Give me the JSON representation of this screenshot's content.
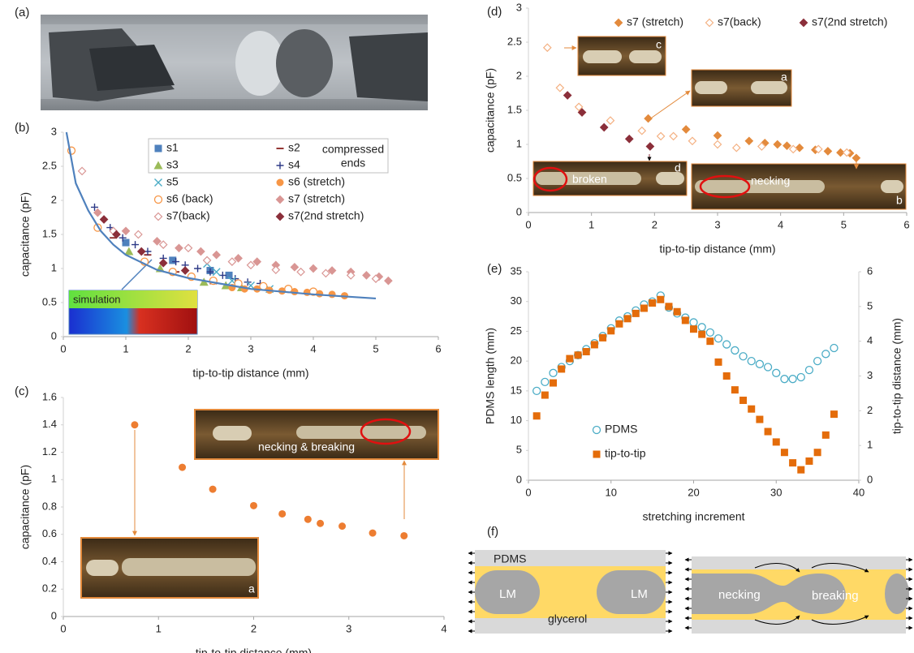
{
  "photo": {
    "label": "(a)"
  },
  "chart_data": [
    {
      "type": "scatter",
      "panel_label": "(b)",
      "x_label": "tip-to-tip distance (mm)",
      "y_label": "capacitance (pF)",
      "xlim": [
        0,
        6
      ],
      "ylim": [
        0,
        3
      ],
      "xticks": [
        0,
        1,
        2,
        3,
        4,
        5,
        6
      ],
      "yticks": [
        0,
        0.5,
        1,
        1.5,
        2,
        2.5,
        3
      ],
      "annotations": [
        "compressed",
        "ends"
      ],
      "series": [
        {
          "name": "s1",
          "color": "#4F81BD",
          "marker": "square",
          "x": [
            1.0,
            1.75,
            2.35,
            2.65
          ],
          "values": [
            1.38,
            1.12,
            0.97,
            0.9
          ]
        },
        {
          "name": "s2",
          "color": "#953735",
          "marker": "dash",
          "x": [
            0.8,
            1.35,
            1.8,
            2.4
          ],
          "values": [
            1.45,
            1.2,
            0.95,
            0.78
          ]
        },
        {
          "name": "s3",
          "color": "#9BBB59",
          "marker": "triangle",
          "x": [
            1.05,
            1.55,
            2.25,
            2.6,
            2.85
          ],
          "values": [
            1.25,
            1.0,
            0.8,
            0.75,
            0.72
          ]
        },
        {
          "name": "s4",
          "color": "#2E3A87",
          "marker": "plus",
          "x": [
            0.5,
            0.75,
            0.95,
            1.15,
            1.35,
            1.6,
            1.8,
            1.95,
            2.15,
            2.35,
            2.55,
            2.75,
            2.95,
            3.15
          ],
          "values": [
            1.9,
            1.6,
            1.45,
            1.35,
            1.25,
            1.15,
            1.1,
            1.05,
            1.0,
            0.95,
            0.9,
            0.85,
            0.8,
            0.78
          ]
        },
        {
          "name": "s5",
          "color": "#4BACC6",
          "marker": "x",
          "x": [
            2.3,
            2.45,
            2.7,
            3.0,
            3.3
          ],
          "values": [
            1.07,
            0.95,
            0.82,
            0.75,
            0.7
          ]
        },
        {
          "name": "s6 (stretch)",
          "color": "#F79646",
          "marker": "circle",
          "x": [
            2.7,
            2.9,
            3.1,
            3.3,
            3.5,
            3.7,
            3.9,
            4.1,
            4.3,
            4.5
          ],
          "values": [
            0.72,
            0.7,
            0.7,
            0.68,
            0.67,
            0.66,
            0.65,
            0.63,
            0.62,
            0.6
          ]
        },
        {
          "name": "s6 (back)",
          "color": "#F79646",
          "marker": "circle-open",
          "x": [
            0.13,
            0.55,
            1.3,
            1.75,
            2.05,
            2.4,
            2.8,
            3.2,
            3.6,
            4.0
          ],
          "values": [
            2.73,
            1.6,
            1.1,
            0.95,
            0.88,
            0.82,
            0.78,
            0.74,
            0.7,
            0.66
          ]
        },
        {
          "name": "s7 (stretch)",
          "color": "#D99694",
          "marker": "diamond",
          "x": [
            0.55,
            1.0,
            1.5,
            1.85,
            2.2,
            2.45,
            2.8,
            3.1,
            3.4,
            3.7,
            4.0,
            4.3,
            4.6,
            4.85,
            5.05,
            5.2
          ],
          "values": [
            1.82,
            1.55,
            1.4,
            1.3,
            1.25,
            1.2,
            1.15,
            1.1,
            1.05,
            1.02,
            1.0,
            0.97,
            0.95,
            0.9,
            0.88,
            0.82
          ]
        },
        {
          "name": "s7(back)",
          "color": "#D99694",
          "marker": "diamond-open",
          "x": [
            0.3,
            0.8,
            1.2,
            1.6,
            2.0,
            2.3,
            2.7,
            3.0,
            3.4,
            3.8,
            4.2,
            4.6,
            5.0
          ],
          "values": [
            2.43,
            1.55,
            1.5,
            1.35,
            1.3,
            1.12,
            1.1,
            1.05,
            0.98,
            0.95,
            0.93,
            0.9,
            0.85
          ]
        },
        {
          "name": "s7(2nd stretch)",
          "color": "#8B2F3A",
          "marker": "diamond",
          "x": [
            0.65,
            0.85,
            1.25,
            1.6,
            1.95
          ],
          "values": [
            1.72,
            1.5,
            1.25,
            1.08,
            0.97
          ]
        },
        {
          "name": "simulation",
          "color": "#4F81BD",
          "marker": "line",
          "x": [
            0.05,
            0.2,
            0.4,
            0.6,
            0.8,
            1.0,
            1.5,
            2.0,
            2.5,
            3.0,
            4.0,
            5.0
          ],
          "values": [
            3.0,
            2.25,
            1.85,
            1.55,
            1.35,
            1.2,
            0.98,
            0.86,
            0.78,
            0.7,
            0.62,
            0.56
          ]
        }
      ]
    },
    {
      "type": "scatter",
      "panel_label": "(c)",
      "x_label": "tip-to-tip distance (mm)",
      "y_label": "capacitance (pF)",
      "xlim": [
        0,
        4
      ],
      "ylim": [
        0,
        1.6
      ],
      "xticks": [
        0,
        1,
        2,
        3,
        4
      ],
      "yticks": [
        0,
        0.2,
        0.4,
        0.6,
        0.8,
        1,
        1.2,
        1.4,
        1.6
      ],
      "annotations": [
        "necking & breaking",
        "a"
      ],
      "series": [
        {
          "color": "#ED7D31",
          "marker": "circle",
          "x": [
            0.75,
            1.25,
            1.57,
            2.0,
            2.3,
            2.57,
            2.7,
            2.93,
            3.25,
            3.58
          ],
          "values": [
            1.4,
            1.09,
            0.93,
            0.81,
            0.75,
            0.71,
            0.68,
            0.66,
            0.61,
            0.59
          ]
        }
      ]
    },
    {
      "type": "scatter",
      "panel_label": "(d)",
      "x_label": "tip-to-tip distance (mm)",
      "y_label": "capacitance (pF)",
      "xlim": [
        0,
        6
      ],
      "ylim": [
        0,
        3
      ],
      "xticks": [
        0,
        1,
        2,
        3,
        4,
        5,
        6
      ],
      "yticks": [
        0,
        0.5,
        1,
        1.5,
        2,
        2.5,
        3
      ],
      "annotations": [
        "c",
        "a",
        "broken",
        "d",
        "necking",
        "b"
      ],
      "series": [
        {
          "name": "s7 (stretch)",
          "color": "#E38A3C",
          "marker": "diamond",
          "x": [
            1.9,
            2.5,
            3.0,
            3.5,
            3.75,
            3.95,
            4.1,
            4.3,
            4.55,
            4.75,
            4.95,
            5.1,
            5.2
          ],
          "values": [
            1.38,
            1.22,
            1.13,
            1.05,
            1.02,
            1.0,
            0.98,
            0.95,
            0.92,
            0.9,
            0.88,
            0.87,
            0.8
          ]
        },
        {
          "name": "s7(back)",
          "color": "#F4B183",
          "marker": "diamond-open",
          "x": [
            0.3,
            0.5,
            0.8,
            0.85,
            1.3,
            1.8,
            2.1,
            2.3,
            2.6,
            3.0,
            3.3,
            3.7,
            4.2,
            4.6,
            5.05
          ],
          "values": [
            2.42,
            1.83,
            1.55,
            1.47,
            1.35,
            1.2,
            1.12,
            1.12,
            1.05,
            1.0,
            0.95,
            0.97,
            0.93,
            0.93,
            0.88
          ]
        },
        {
          "name": "s7(2nd stretch)",
          "color": "#8B2F3A",
          "marker": "diamond",
          "x": [
            0.62,
            0.85,
            1.2,
            1.6,
            1.93
          ],
          "values": [
            1.72,
            1.47,
            1.25,
            1.08,
            0.97
          ]
        }
      ]
    },
    {
      "type": "scatter",
      "panel_label": "(e)",
      "x_label": "stretching increment",
      "y_label": "PDMS length (mm)",
      "y2_label": "tip-to-tip distance (mm)",
      "xlim": [
        0,
        40
      ],
      "ylim": [
        0,
        35
      ],
      "y2lim": [
        0,
        6
      ],
      "xticks": [
        0,
        10,
        20,
        30,
        40
      ],
      "yticks": [
        0,
        5,
        10,
        15,
        20,
        25,
        30,
        35
      ],
      "y2ticks": [
        0,
        1,
        2,
        3,
        4,
        5,
        6
      ],
      "series": [
        {
          "name": "PDMS",
          "color": "#4BACC6",
          "marker": "circle-open",
          "x": [
            1,
            2,
            3,
            4,
            5,
            6,
            7,
            8,
            9,
            10,
            11,
            12,
            13,
            14,
            15,
            16,
            17,
            18,
            19,
            20,
            21,
            22,
            23,
            24,
            25,
            26,
            27,
            28,
            29,
            30,
            31,
            32,
            33,
            34,
            35,
            36,
            37
          ],
          "values": [
            15,
            16.5,
            18,
            19,
            20,
            21,
            22,
            23,
            24.2,
            25.5,
            26.8,
            27.5,
            28.5,
            29.5,
            30,
            31,
            29,
            28,
            27.3,
            26.5,
            25.7,
            24.8,
            23.8,
            22.8,
            21.8,
            20.8,
            20,
            19.5,
            19,
            18,
            17,
            17,
            17.3,
            18.5,
            20,
            21.2,
            22.2
          ]
        },
        {
          "name": "tip-to-tip",
          "color": "#E46C0A",
          "marker": "square",
          "axis": "y2",
          "x": [
            1,
            2,
            3,
            4,
            5,
            6,
            7,
            8,
            9,
            10,
            11,
            12,
            13,
            14,
            15,
            16,
            17,
            18,
            19,
            20,
            21,
            22,
            23,
            24,
            25,
            26,
            27,
            28,
            29,
            30,
            31,
            32,
            33,
            34,
            35,
            36,
            37
          ],
          "values": [
            1.85,
            2.45,
            2.8,
            3.2,
            3.5,
            3.6,
            3.7,
            3.9,
            4.1,
            4.3,
            4.5,
            4.65,
            4.8,
            4.95,
            5.1,
            5.2,
            5.0,
            4.85,
            4.6,
            4.35,
            4.2,
            4.0,
            3.4,
            3.0,
            2.6,
            2.3,
            2.05,
            1.75,
            1.4,
            1.1,
            0.8,
            0.5,
            0.3,
            0.55,
            0.8,
            1.3,
            1.9
          ]
        }
      ]
    }
  ],
  "diagram": {
    "label": "(f)",
    "pdms": "PDMS",
    "lm_left": "LM",
    "lm_right": "LM",
    "glycerol": "glycerol",
    "necking": "necking",
    "breaking": "breaking"
  }
}
